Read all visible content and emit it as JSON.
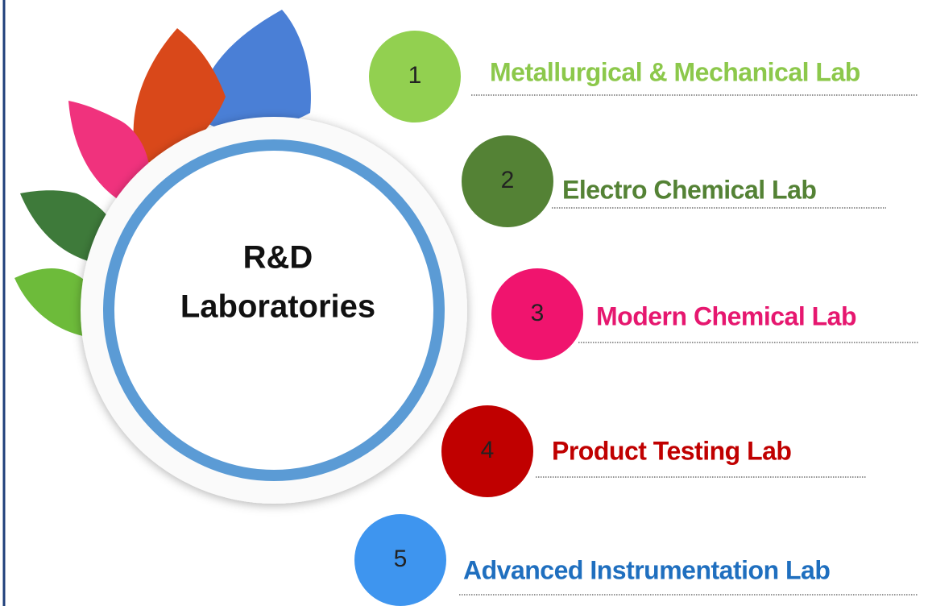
{
  "center": {
    "lines": [
      "R&D",
      "Laboratories"
    ]
  },
  "labs": [
    {
      "number": 1,
      "label": "Metallurgical & Mechanical Lab"
    },
    {
      "number": 2,
      "label": "Electro Chemical Lab"
    },
    {
      "number": 3,
      "label": "Modern Chemical Lab"
    },
    {
      "number": 4,
      "label": "Product Testing Lab"
    },
    {
      "number": 5,
      "label": "Advanced Instrumentation Lab"
    }
  ]
}
